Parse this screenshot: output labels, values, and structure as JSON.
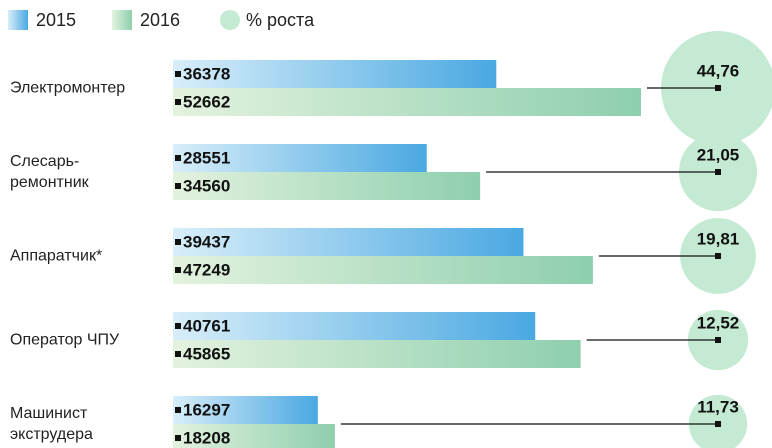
{
  "chart_data": {
    "type": "bar",
    "orientation": "horizontal",
    "categories": [
      "Электромонтер",
      "Слесарь-\nремонтник",
      "Аппаратчик*",
      "Оператор ЧПУ",
      "Машинист\nэкструдера"
    ],
    "series": [
      {
        "name": "2015",
        "color": "#4aa8e2",
        "values": [
          36378,
          28551,
          39437,
          40761,
          16297
        ]
      },
      {
        "name": "2016",
        "color": "#8ecfae",
        "values": [
          52662,
          34560,
          47249,
          45865,
          18208
        ]
      }
    ],
    "growth": {
      "name": "% роста",
      "color": "#c4ead3",
      "values": [
        44.76,
        21.05,
        19.81,
        12.52,
        11.73
      ],
      "value_labels": [
        "44,76",
        "21,05",
        "19,81",
        "12,52",
        "11,73"
      ]
    }
  }
}
